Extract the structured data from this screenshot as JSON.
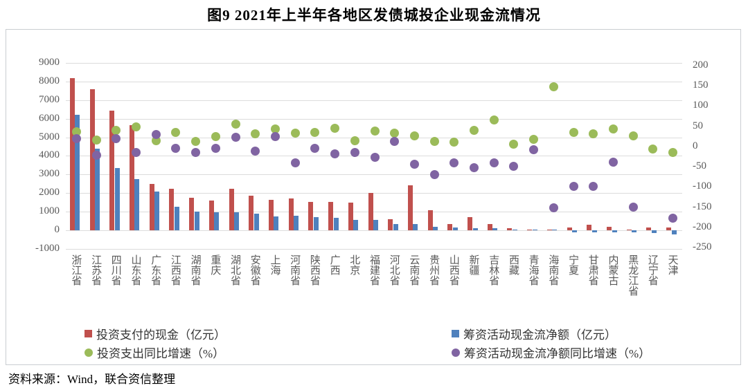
{
  "title": "图9  2021年上半年各地区发债城投企业现金流情况",
  "source": "资料来源：Wind，联合资信整理",
  "colors": {
    "invest_cash_bar": "#c0504d",
    "financing_net_bar": "#4f81bd",
    "invest_growth_dot": "#9bbb59",
    "financing_growth_dot": "#8064a2",
    "gridline": "#dcdcdc",
    "axis_text": "#595959"
  },
  "axes": {
    "left_ticks": [
      9000,
      8000,
      7000,
      6000,
      5000,
      4000,
      3000,
      2000,
      1000,
      0,
      -1000
    ],
    "right_ticks": [
      200,
      150,
      100,
      50,
      0,
      -50,
      -100,
      -150,
      -200,
      -250
    ]
  },
  "chart_data": {
    "type": "combo-bar-scatter",
    "grid": true,
    "legend_position": "bottom",
    "y_left": {
      "min": -1000,
      "max": 9000,
      "step": 1000
    },
    "y_right": {
      "min": -250,
      "max": 200,
      "step": 50
    },
    "categories": [
      "浙江省",
      "江苏省",
      "四川省",
      "山东省",
      "广东省",
      "江西省",
      "湖南省",
      "重庆",
      "湖北省",
      "安徽省",
      "上海",
      "河南省",
      "陕西省",
      "广西",
      "北京",
      "福建省",
      "河北省",
      "云南省",
      "贵州省",
      "山西省",
      "新疆",
      "吉林省",
      "西藏",
      "青海省",
      "海南省",
      "宁夏",
      "甘肃省",
      "内蒙古",
      "黑龙江省",
      "辽宁省",
      "天津"
    ],
    "series": [
      {
        "name": "投资支付的现金（亿元）",
        "type": "bar",
        "axis": "left",
        "color": "#c0504d",
        "values": [
          8200,
          7600,
          6450,
          5650,
          2500,
          2250,
          1750,
          1600,
          2250,
          1850,
          1630,
          1700,
          1540,
          1510,
          1480,
          2000,
          610,
          2400,
          1080,
          330,
          700,
          350,
          100,
          40,
          40,
          150,
          290,
          200,
          40,
          140,
          140
        ]
      },
      {
        "name": "筹资活动现金流净额（亿元）",
        "type": "bar",
        "axis": "left",
        "color": "#4f81bd",
        "values": [
          6200,
          4400,
          3350,
          2750,
          2100,
          1280,
          1020,
          980,
          980,
          880,
          760,
          780,
          720,
          670,
          560,
          550,
          330,
          330,
          200,
          150,
          120,
          120,
          30,
          20,
          20,
          -100,
          -100,
          -100,
          -120,
          -150,
          -230
        ]
      },
      {
        "name": "投资支出同比增速（%）",
        "type": "scatter",
        "axis": "right",
        "color": "#9bbb59",
        "values": [
          36,
          16,
          40,
          49,
          15,
          35,
          12,
          24,
          55,
          32,
          44,
          34,
          35,
          46,
          15,
          38,
          34,
          27,
          13,
          11,
          40,
          65,
          5,
          17,
          148,
          35,
          32,
          43,
          27,
          -6,
          -14
        ]
      },
      {
        "name": "筹资活动现金流净额同比增速（%）",
        "type": "scatter",
        "axis": "right",
        "color": "#8064a2",
        "values": [
          19,
          -22,
          20,
          -14,
          30,
          -5,
          -14,
          -5,
          23,
          -12,
          25,
          -40,
          -5,
          -18,
          -14,
          -26,
          12,
          -43,
          -70,
          -41,
          -52,
          -40,
          -49,
          -8,
          -152,
          -98,
          -98,
          -38,
          -150,
          null,
          -178
        ]
      }
    ]
  }
}
